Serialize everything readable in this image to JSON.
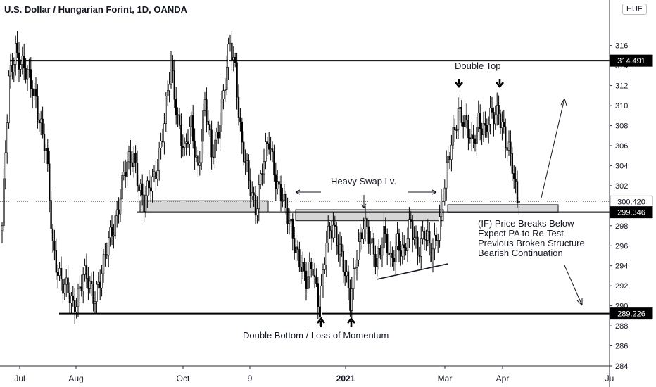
{
  "header": {
    "title": "U.S. Dollar / Hungarian Forint, 1D, OANDA",
    "currency_badge": "HUF"
  },
  "annotations": {
    "double_top": "Double Top",
    "heavy_swap": "Heavy Swap Lv.",
    "double_bottom": "Double Bottom / Loss of Momentum",
    "scenario_lines": [
      "(IF) Price Breaks Below",
      "Expect PA to Re-Test",
      "Previous Broken Structure",
      "Bearish Continuation"
    ]
  },
  "chart_data": {
    "type": "candlestick",
    "symbol": "USDHUF",
    "ylim": [
      284,
      319
    ],
    "y_ticks": [
      316,
      314,
      312,
      310,
      308,
      306,
      304,
      302,
      300,
      298,
      296,
      294,
      292,
      290,
      288,
      286,
      284
    ],
    "y_tick_labels": [
      "316",
      "314",
      "312",
      "310",
      "308",
      "306",
      "304",
      "302",
      "300",
      "298",
      "296",
      "294",
      "292",
      "290",
      "288",
      "286",
      "284"
    ],
    "x_tick_labels": [
      "Jul",
      "Aug",
      "Oct",
      "9",
      "2021",
      "Mar",
      "Apr",
      "Ju"
    ],
    "price_labels": [
      {
        "value": 314.491,
        "label": "314.491",
        "style": "level"
      },
      {
        "value": 300.42,
        "label": "300.420",
        "style": "last"
      },
      {
        "value": 299.346,
        "label": "299.346",
        "style": "level"
      },
      {
        "value": 289.226,
        "label": "289.226",
        "style": "level"
      }
    ],
    "horizontal_levels": [
      314.491,
      299.346,
      289.226
    ],
    "zones": [
      {
        "from": 299.35,
        "to": 300.5
      },
      {
        "from": 298.5,
        "to": 299.6
      },
      {
        "from": 299.3,
        "to": 300.1
      }
    ],
    "series": [
      {
        "name": "USDHUF",
        "pivots": [
          [
            0,
            298
          ],
          [
            4,
            312
          ],
          [
            8,
            316
          ],
          [
            14,
            313
          ],
          [
            20,
            311
          ],
          [
            26,
            305
          ],
          [
            30,
            296
          ],
          [
            36,
            292
          ],
          [
            42,
            290
          ],
          [
            48,
            293
          ],
          [
            54,
            291
          ],
          [
            60,
            294
          ],
          [
            66,
            298
          ],
          [
            72,
            303
          ],
          [
            78,
            305
          ],
          [
            84,
            300
          ],
          [
            90,
            303
          ],
          [
            96,
            308
          ],
          [
            100,
            314
          ],
          [
            104,
            309
          ],
          [
            108,
            305
          ],
          [
            112,
            308
          ],
          [
            116,
            304
          ],
          [
            120,
            310
          ],
          [
            124,
            305
          ],
          [
            128,
            308
          ],
          [
            132,
            312
          ],
          [
            135,
            316
          ],
          [
            138,
            314
          ],
          [
            142,
            306
          ],
          [
            146,
            302
          ],
          [
            150,
            300
          ],
          [
            154,
            304
          ],
          [
            158,
            306
          ],
          [
            162,
            303
          ],
          [
            166,
            301
          ],
          [
            168,
            299
          ],
          [
            172,
            297
          ],
          [
            176,
            295
          ],
          [
            180,
            292
          ],
          [
            184,
            294
          ],
          [
            188,
            290
          ],
          [
            192,
            296
          ],
          [
            196,
            298
          ],
          [
            200,
            296
          ],
          [
            204,
            292
          ],
          [
            206,
            290
          ],
          [
            210,
            296
          ],
          [
            214,
            298
          ],
          [
            218,
            296
          ],
          [
            222,
            295
          ],
          [
            226,
            297
          ],
          [
            230,
            294
          ],
          [
            234,
            297
          ],
          [
            238,
            295
          ],
          [
            242,
            298
          ],
          [
            246,
            296
          ],
          [
            250,
            297
          ],
          [
            254,
            295
          ],
          [
            258,
            298
          ],
          [
            262,
            302
          ],
          [
            266,
            306
          ],
          [
            270,
            310
          ],
          [
            274,
            308
          ],
          [
            278,
            306
          ],
          [
            282,
            309
          ],
          [
            286,
            307
          ],
          [
            290,
            309
          ],
          [
            294,
            310
          ],
          [
            298,
            306
          ],
          [
            302,
            304
          ],
          [
            305,
            301
          ],
          [
            306,
            300.42
          ]
        ]
      }
    ]
  }
}
